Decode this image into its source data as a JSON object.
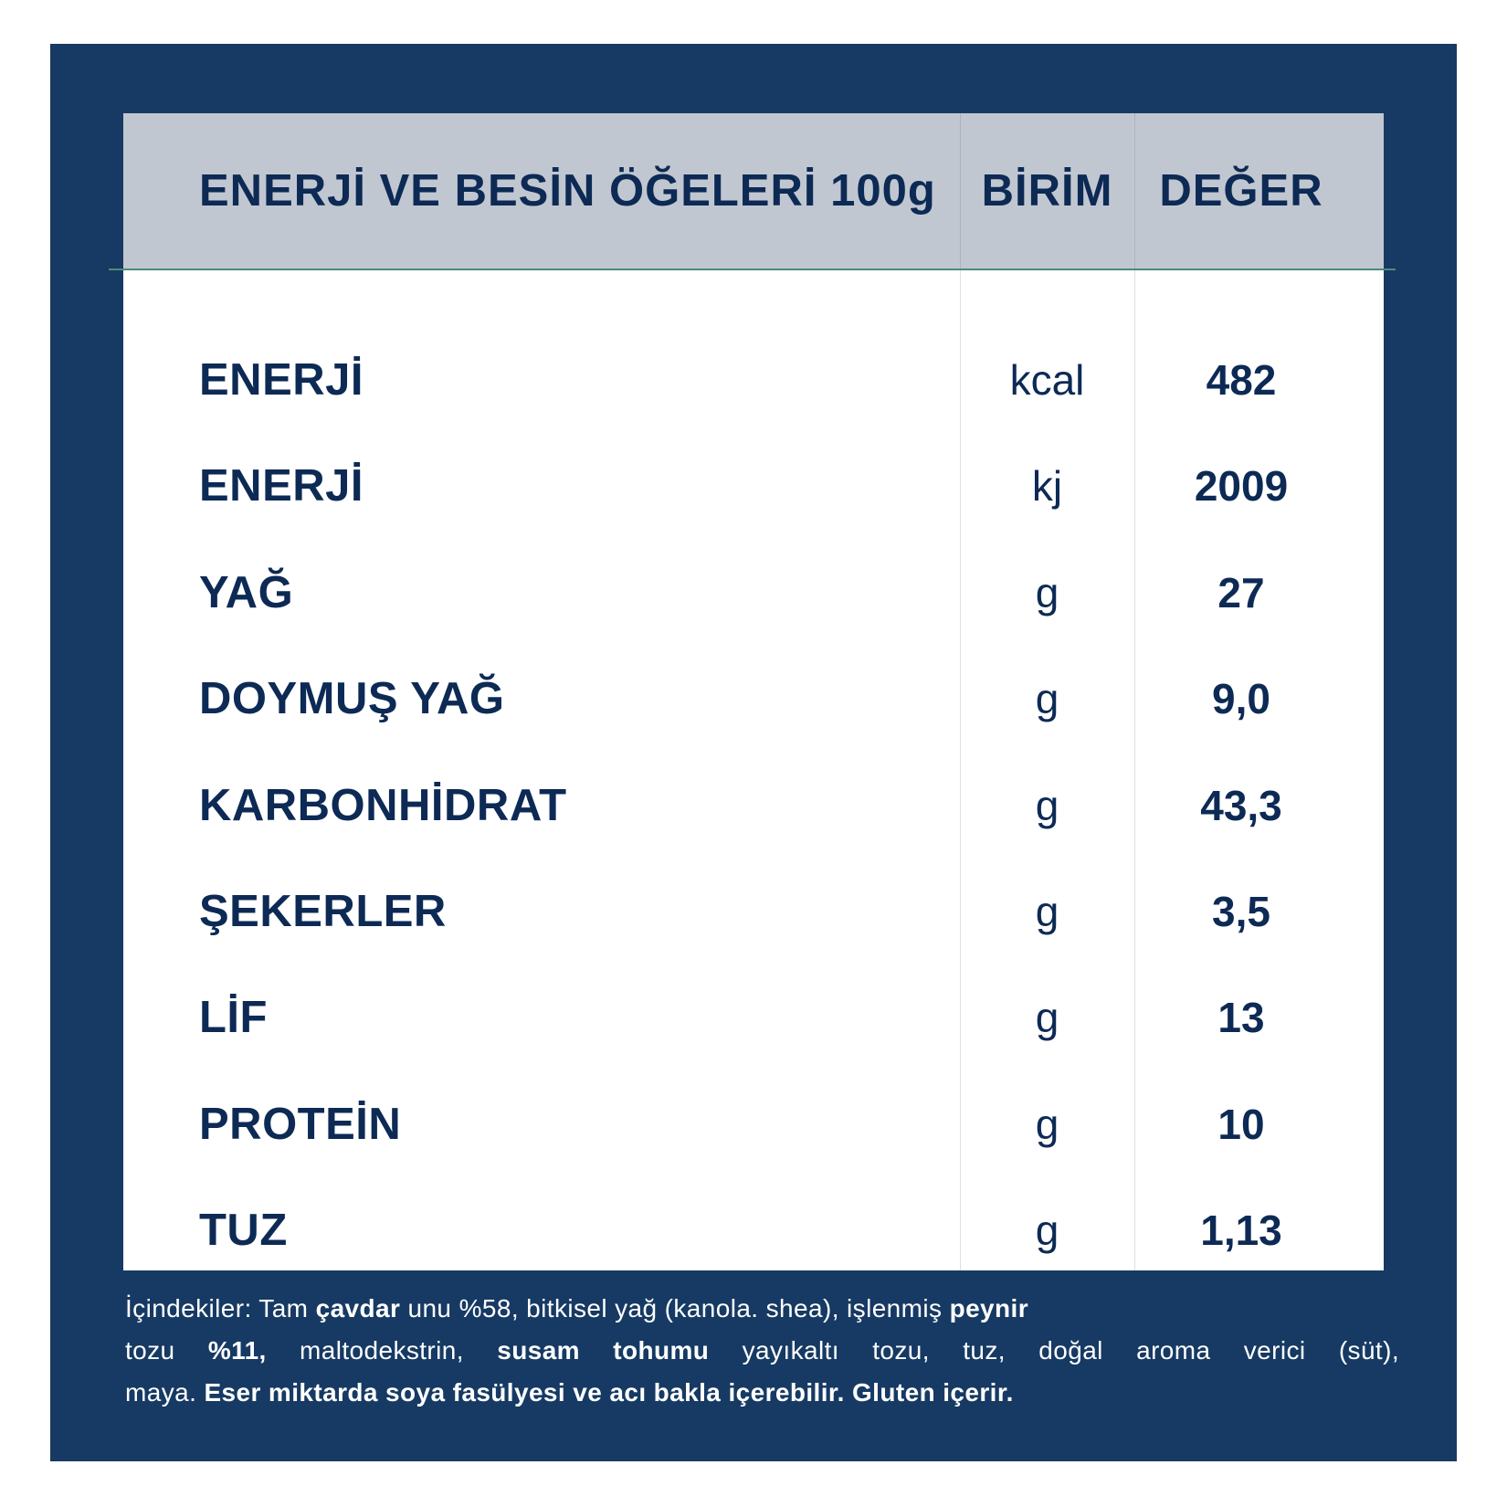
{
  "table": {
    "headers": {
      "nutrient": "ENERJİ VE BESİN ÖĞELERİ 100g",
      "unit": "BİRİM",
      "value": "DEĞER"
    },
    "rows": [
      {
        "name": "ENERJİ",
        "unit": "kcal",
        "value": "482"
      },
      {
        "name": "ENERJİ",
        "unit": "kj",
        "value": "2009"
      },
      {
        "name": "YAĞ",
        "unit": "g",
        "value": "27"
      },
      {
        "name": "DOYMUŞ YAĞ",
        "unit": "g",
        "value": "9,0"
      },
      {
        "name": "KARBONHİDRAT",
        "unit": "g",
        "value": "43,3"
      },
      {
        "name": "ŞEKERLER",
        "unit": "g",
        "value": "3,5"
      },
      {
        "name": "LİF",
        "unit": "g",
        "value": "13"
      },
      {
        "name": "PROTEİN",
        "unit": "g",
        "value": "10"
      },
      {
        "name": "TUZ",
        "unit": "g",
        "value": "1,13"
      }
    ]
  },
  "ingredients": {
    "lines": [
      [
        {
          "text": "İçindekiler: Tam ",
          "bold": false
        },
        {
          "text": "çavdar",
          "bold": true
        },
        {
          "text": " unu %58, bitkisel yağ (kanola. shea), işlenmiş ",
          "bold": false
        },
        {
          "text": "peynir",
          "bold": true
        }
      ],
      [
        {
          "text": "tozu ",
          "bold": false
        },
        {
          "text": "%11,",
          "bold": true
        },
        {
          "text": " maltodekstrin, ",
          "bold": false
        },
        {
          "text": "susam tohumu",
          "bold": true
        },
        {
          "text": " yayıkaltı tozu, tuz, doğal aroma verici (süt),",
          "bold": false
        }
      ],
      [
        {
          "text": "maya. ",
          "bold": false
        },
        {
          "text": "Eser miktarda soya fasülyesi ve acı bakla içerebilir. Gluten içerir.",
          "bold": true
        }
      ]
    ]
  },
  "colors": {
    "panel": "#163a63",
    "header_band": "#c1c7d1",
    "text": "#0d2a55",
    "rule": "#4e8a7a"
  }
}
